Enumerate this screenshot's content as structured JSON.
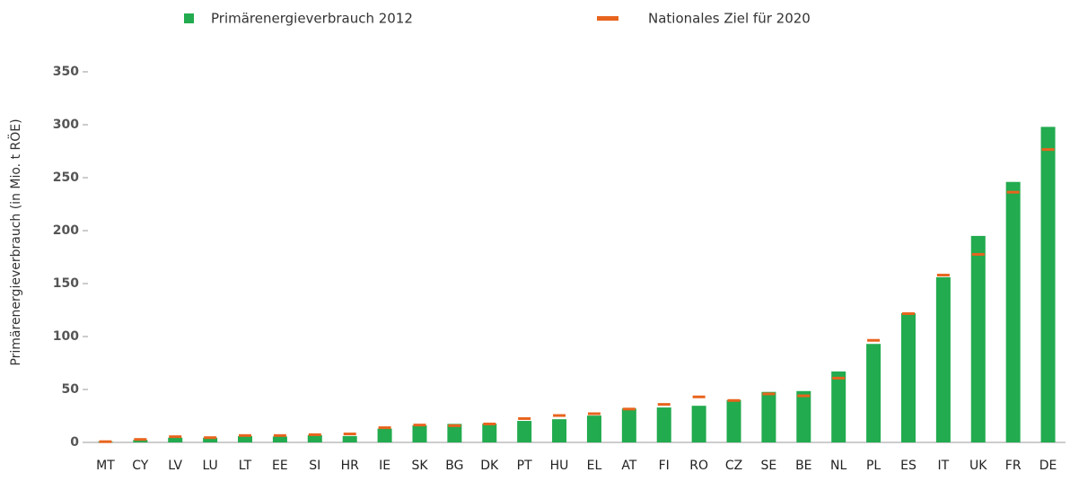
{
  "chart_data": {
    "type": "bar",
    "y_label": "Primärenergieverbrauch (in Mio. t RÖE)",
    "categories": [
      "MT",
      "CY",
      "LV",
      "LU",
      "LT",
      "EE",
      "SI",
      "HR",
      "IE",
      "SK",
      "BG",
      "DK",
      "PT",
      "HU",
      "EL",
      "AT",
      "FI",
      "RO",
      "CZ",
      "SE",
      "BE",
      "NL",
      "PL",
      "ES",
      "IT",
      "UK",
      "FR",
      "DE"
    ],
    "series": [
      {
        "name": "Primärenergieverbrauch 2012",
        "color": "#22ab4f",
        "style": "bar",
        "values": [
          0.8,
          2.4,
          4.4,
          4.4,
          5.9,
          5.6,
          6.9,
          6,
          13,
          16.1,
          17.5,
          17.6,
          20.3,
          21.9,
          25.3,
          32,
          33,
          34.6,
          40,
          47.7,
          48.5,
          67,
          93,
          122,
          156,
          195,
          246,
          298
        ]
      },
      {
        "name": "Nationales Ziel für 2020",
        "color": "#e8641e",
        "style": "dash",
        "values": [
          0.7,
          2.8,
          5.4,
          4.5,
          6.5,
          6.5,
          7.3,
          8,
          13.9,
          16.4,
          15.8,
          17.4,
          22.5,
          25.4,
          27.1,
          31.5,
          35.9,
          43,
          39.6,
          45.8,
          44,
          60.7,
          96.4,
          121.6,
          158,
          177.6,
          236.3,
          276.6
        ]
      }
    ],
    "ylim": [
      0,
      350
    ],
    "yticks": [
      0,
      50,
      100,
      150,
      200,
      250,
      300,
      350
    ]
  }
}
